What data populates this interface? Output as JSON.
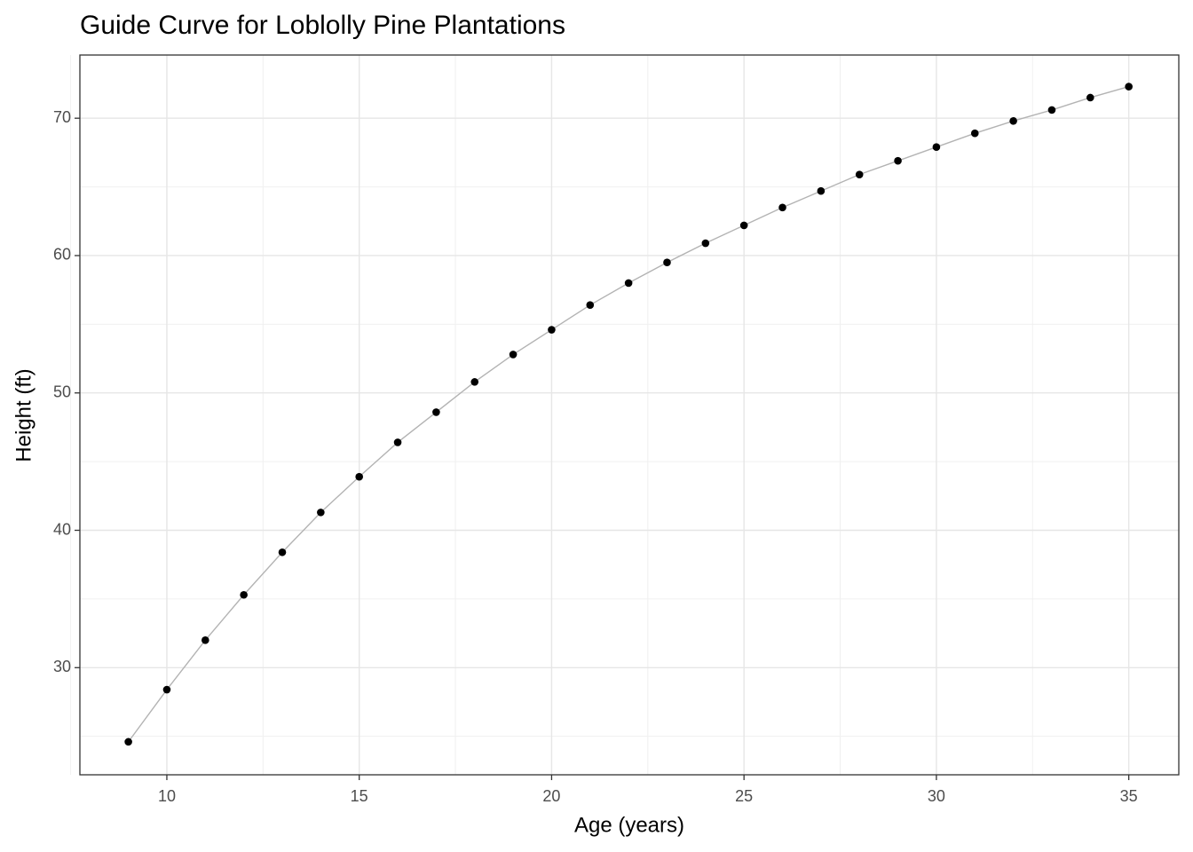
{
  "chart_data": {
    "type": "line",
    "title": "Guide Curve for Loblolly Pine Plantations",
    "x_label": "Age (years)",
    "y_label": "Height (ft)",
    "x": [
      9,
      10,
      11,
      12,
      13,
      14,
      15,
      16,
      17,
      18,
      19,
      20,
      21,
      22,
      23,
      24,
      25,
      26,
      27,
      28,
      29,
      30,
      31,
      32,
      33,
      34,
      35
    ],
    "series": [
      {
        "color": "#000000",
        "line_color": "#b3b3b3",
        "values": [
          24.6,
          28.4,
          32.0,
          35.3,
          38.4,
          41.3,
          43.9,
          46.4,
          48.6,
          50.8,
          52.8,
          54.6,
          56.4,
          58.0,
          59.5,
          60.9,
          62.2,
          63.5,
          64.7,
          65.9,
          66.9,
          67.9,
          68.9,
          69.8,
          70.6,
          71.5,
          72.3
        ]
      }
    ],
    "xlim": [
      7.74,
      36.3
    ],
    "ylim": [
      22.2,
      74.6
    ],
    "xticks": [
      10,
      15,
      20,
      25,
      30,
      35
    ],
    "yticks": [
      30,
      40,
      50,
      60,
      70
    ],
    "x_minor_ticks": [
      7.5,
      12.5,
      17.5,
      22.5,
      27.5,
      32.5
    ],
    "y_minor_ticks": [
      25,
      35,
      45,
      55,
      65
    ],
    "grid": true
  }
}
